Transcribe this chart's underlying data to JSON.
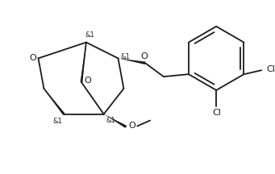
{
  "bg_color": "#ffffff",
  "line_color": "#1a1a1a",
  "line_width": 1.3,
  "font_size": 7.0,
  "stereo_label": "&1",
  "o_label": "O",
  "cl_label": "Cl",
  "methoxy_label": "O"
}
